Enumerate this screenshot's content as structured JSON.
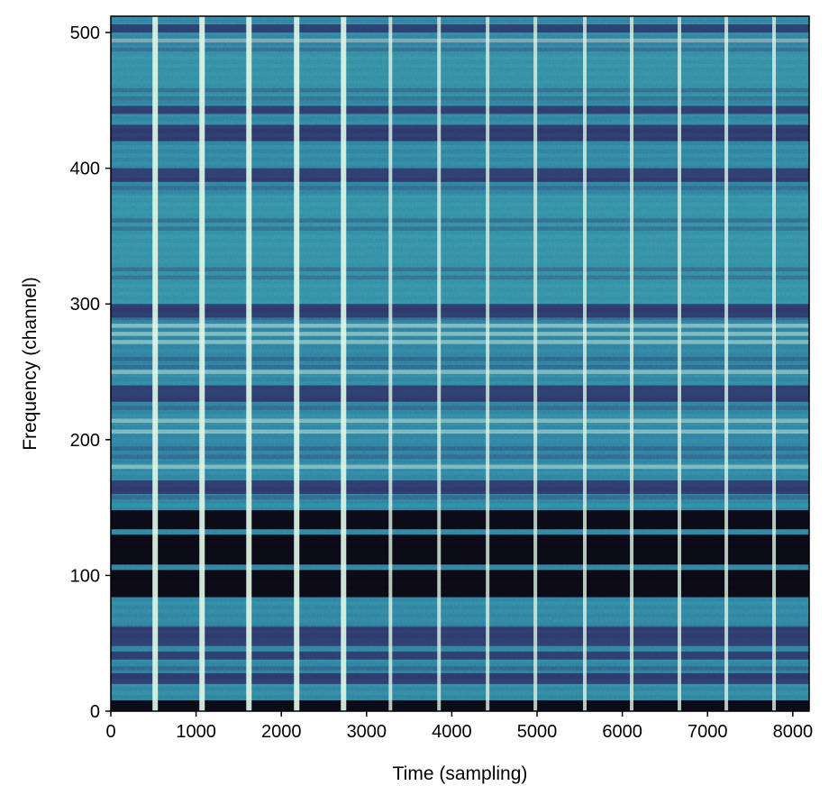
{
  "chart_data": {
    "type": "heatmap",
    "title": "",
    "xlabel": "Time (sampling)",
    "ylabel": "Frequency (channel)",
    "xlim": [
      0,
      8192
    ],
    "ylim": [
      0,
      512
    ],
    "xticks": [
      0,
      1000,
      2000,
      3000,
      4000,
      5000,
      6000,
      7000,
      8000
    ],
    "yticks": [
      0,
      100,
      200,
      300,
      400,
      500
    ],
    "colormap": "mako",
    "grid": false,
    "colors": {
      "dark": "#0b0410",
      "deep": "#2f2a62",
      "mid": "#2a7fa0",
      "bright": "#3aa6ab",
      "pulse": "#def5e5"
    },
    "vertical_pulses_time": [
      520,
      1070,
      1620,
      2180,
      2730,
      3280,
      3850,
      4420,
      4980,
      5560,
      6110,
      6670,
      7220,
      7780
    ],
    "dark_bands_channel": [
      [
        0,
        8
      ],
      [
        20,
        28
      ],
      [
        38,
        44
      ],
      [
        48,
        62
      ],
      [
        84,
        104
      ],
      [
        108,
        130
      ],
      [
        134,
        148
      ],
      [
        160,
        170
      ],
      [
        228,
        240
      ],
      [
        290,
        300
      ],
      [
        390,
        400
      ],
      [
        420,
        432
      ],
      [
        440,
        446
      ],
      [
        500,
        506
      ]
    ],
    "bright_lines_channel": [
      180,
      206,
      214,
      272,
      278,
      284,
      250,
      494
    ]
  }
}
